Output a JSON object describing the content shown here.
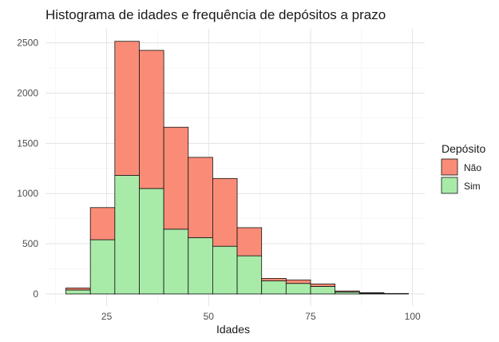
{
  "chart_data": {
    "type": "bar",
    "stacked": true,
    "histogram": true,
    "title": "Histograma de idades e frequência de depósitos a prazo",
    "xlabel": "Idades",
    "ylabel": "",
    "bin_width": 6,
    "bins": [
      {
        "x0": 15,
        "x1": 21
      },
      {
        "x0": 21,
        "x1": 27
      },
      {
        "x0": 27,
        "x1": 33
      },
      {
        "x0": 33,
        "x1": 39
      },
      {
        "x0": 39,
        "x1": 45
      },
      {
        "x0": 45,
        "x1": 51
      },
      {
        "x0": 51,
        "x1": 57
      },
      {
        "x0": 57,
        "x1": 63
      },
      {
        "x0": 63,
        "x1": 69
      },
      {
        "x0": 69,
        "x1": 75
      },
      {
        "x0": 75,
        "x1": 81
      },
      {
        "x0": 81,
        "x1": 87
      },
      {
        "x0": 87,
        "x1": 93
      },
      {
        "x0": 93,
        "x1": 99
      }
    ],
    "series": [
      {
        "name": "Sim",
        "color": "#A8EBA8",
        "values": [
          40,
          540,
          1180,
          1050,
          645,
          560,
          475,
          380,
          130,
          105,
          75,
          20,
          8,
          3
        ]
      },
      {
        "name": "Não",
        "color": "#FA8C77",
        "values": [
          20,
          320,
          1335,
          1375,
          1015,
          800,
          675,
          280,
          25,
          35,
          25,
          10,
          5,
          2
        ]
      }
    ],
    "stack_order": [
      "Sim",
      "Não"
    ],
    "x_ticks": [
      25,
      50,
      75,
      100
    ],
    "y_ticks": [
      0,
      500,
      1000,
      1500,
      2000,
      2500
    ],
    "xlim": [
      10,
      103
    ],
    "ylim": [
      -120,
      2640
    ],
    "grid": true,
    "legend": {
      "title": "Depósito",
      "position": "right",
      "entries": [
        "Não",
        "Sim"
      ]
    }
  }
}
